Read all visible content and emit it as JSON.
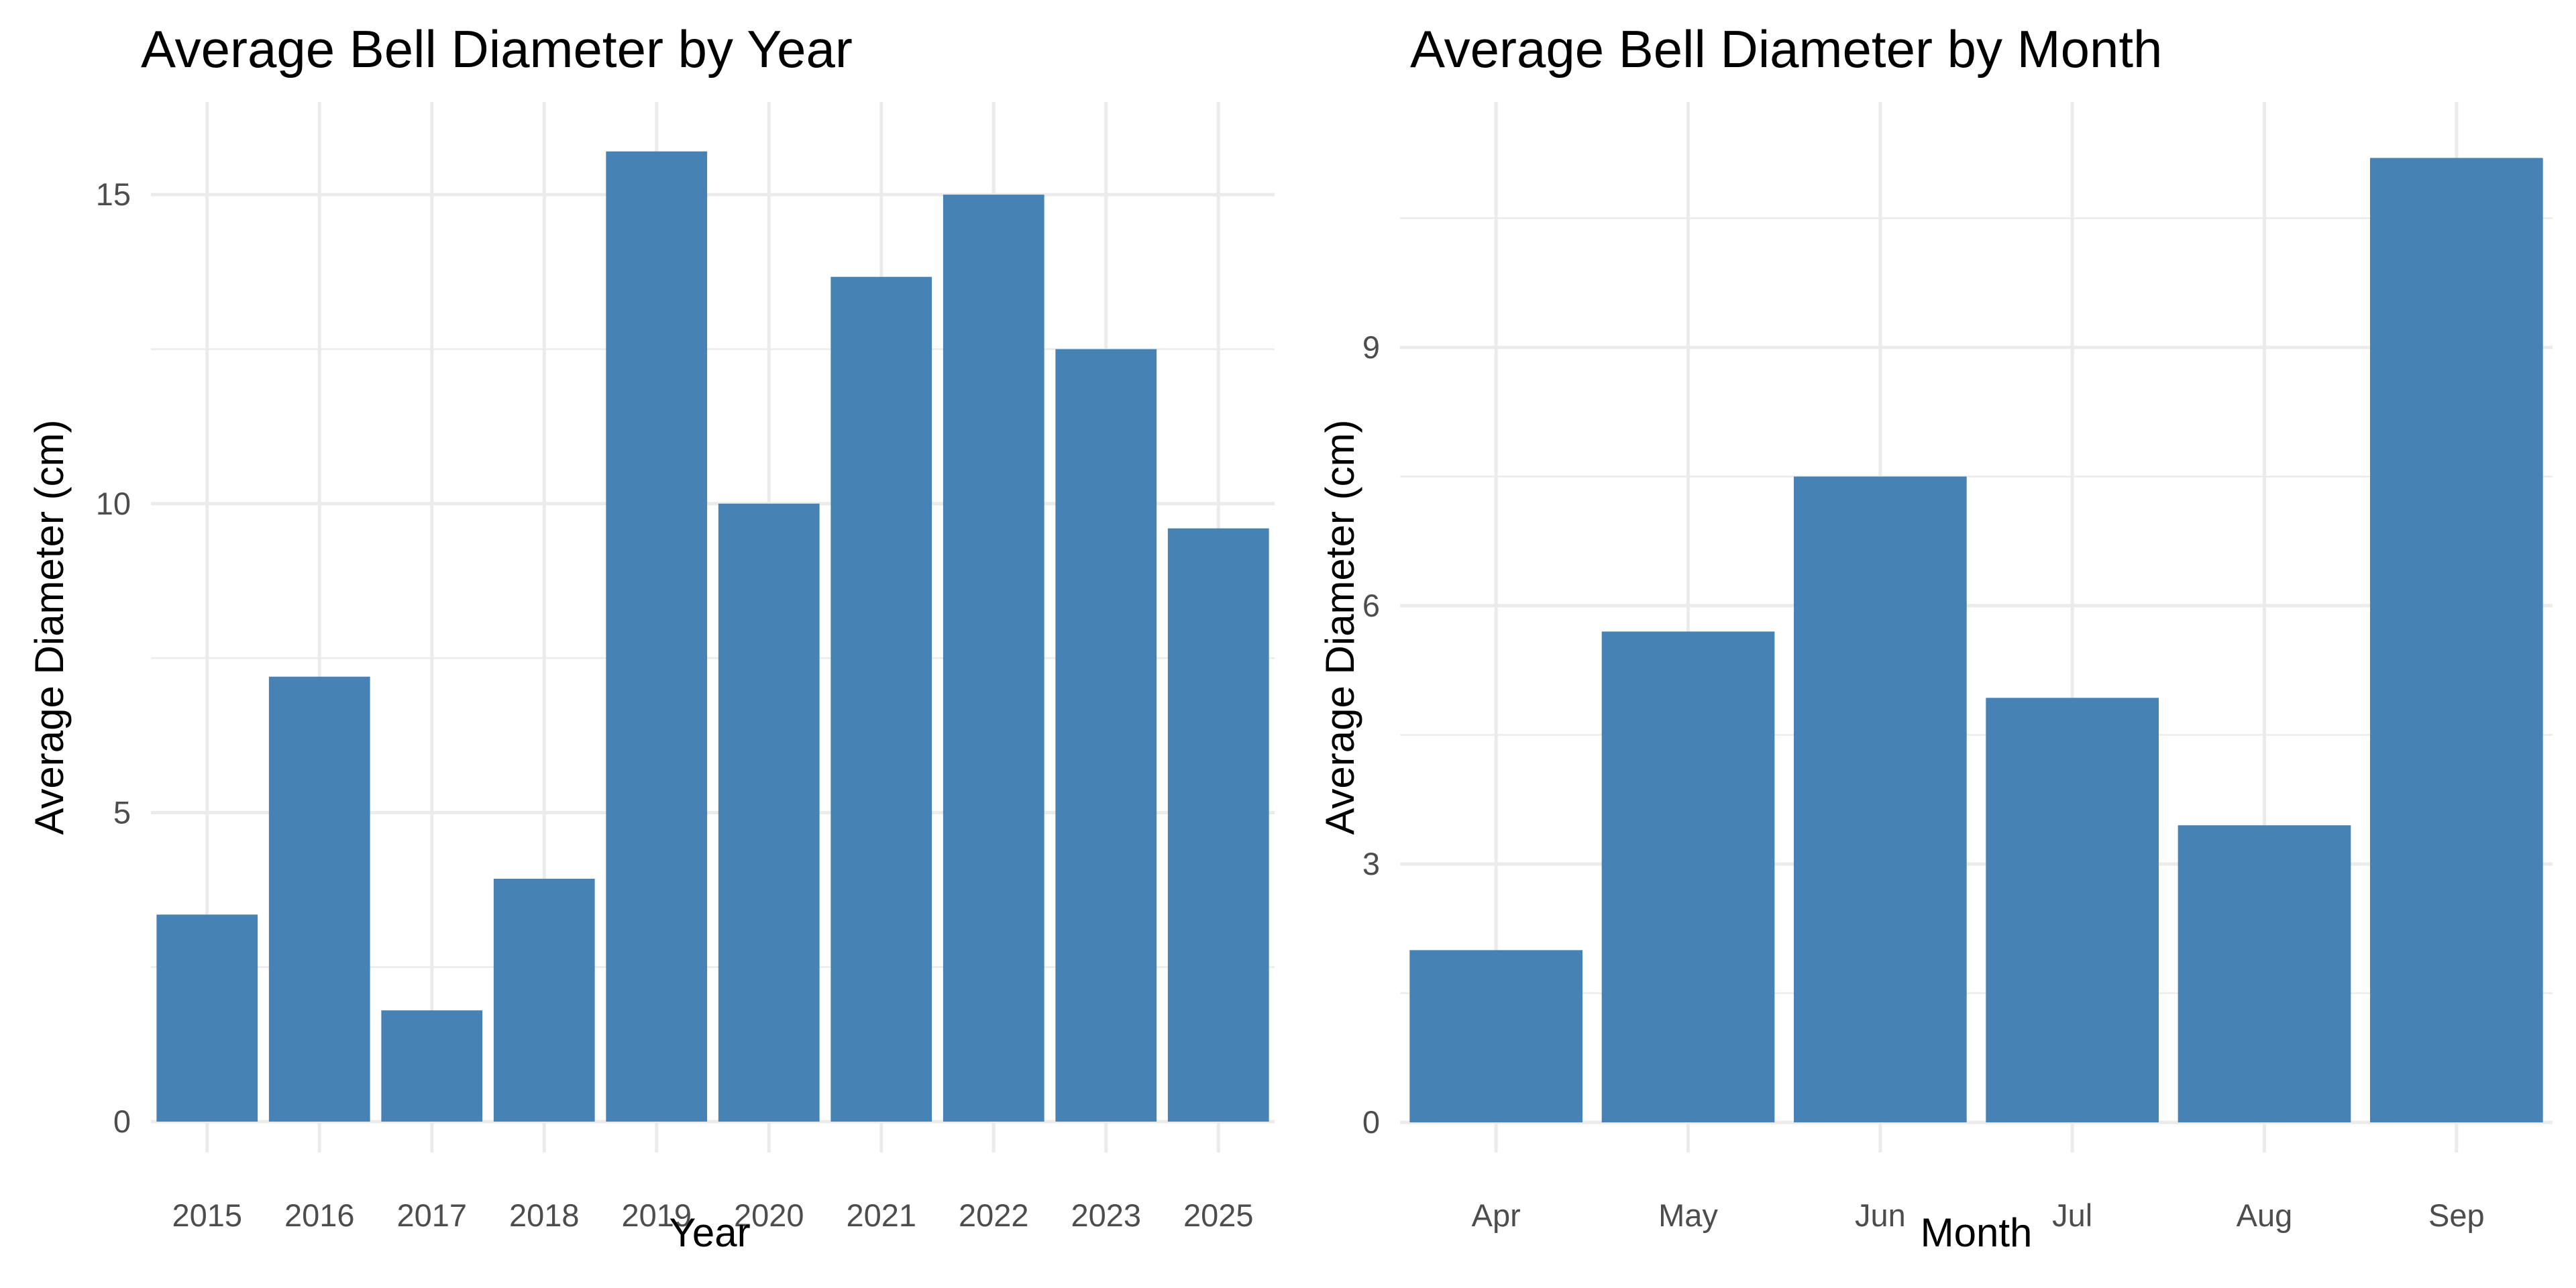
{
  "chart_data": [
    {
      "type": "bar",
      "title": "Average Bell Diameter by Year",
      "xlabel": "Year",
      "ylabel": "Average Diameter (cm)",
      "categories": [
        "2015",
        "2016",
        "2017",
        "2018",
        "2019",
        "2020",
        "2021",
        "2022",
        "2023",
        "2025"
      ],
      "values": [
        3.35,
        7.2,
        1.8,
        3.93,
        15.7,
        10.0,
        13.67,
        15.0,
        12.5,
        9.6
      ],
      "ylim": [
        -0.5,
        16.5
      ],
      "yticks": [
        0,
        5,
        10,
        15
      ],
      "grid": true,
      "bar_color": "#4682B4",
      "grid_color": "#EBEBEB"
    },
    {
      "type": "bar",
      "title": "Average Bell Diameter by Month",
      "xlabel": "Month",
      "ylabel": "Average Diameter (cm)",
      "categories": [
        "Apr",
        "May",
        "Jun",
        "Jul",
        "Aug",
        "Sep"
      ],
      "values": [
        2.0,
        5.7,
        7.5,
        4.93,
        3.45,
        11.2
      ],
      "ylim": [
        -0.35,
        11.85
      ],
      "yticks": [
        0,
        3,
        6,
        9
      ],
      "grid": true,
      "bar_color": "#4682B4",
      "grid_color": "#EBEBEB"
    }
  ]
}
